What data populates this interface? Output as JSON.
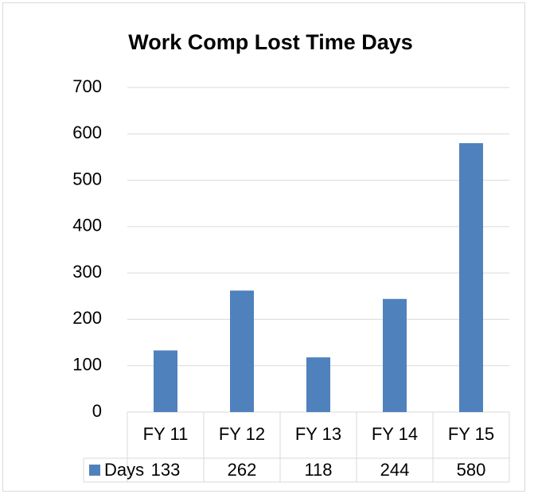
{
  "chart_data": {
    "type": "bar",
    "title": "Work Comp Lost Time Days",
    "categories": [
      "FY 11",
      "FY 12",
      "FY 13",
      "FY 14",
      "FY 15"
    ],
    "series": [
      {
        "name": "Days",
        "color": "#4f81bd",
        "values": [
          133,
          262,
          118,
          244,
          580
        ]
      }
    ],
    "ylim": [
      0,
      700
    ],
    "yticks": [
      0,
      100,
      200,
      300,
      400,
      500,
      600,
      700
    ],
    "grid": true
  }
}
